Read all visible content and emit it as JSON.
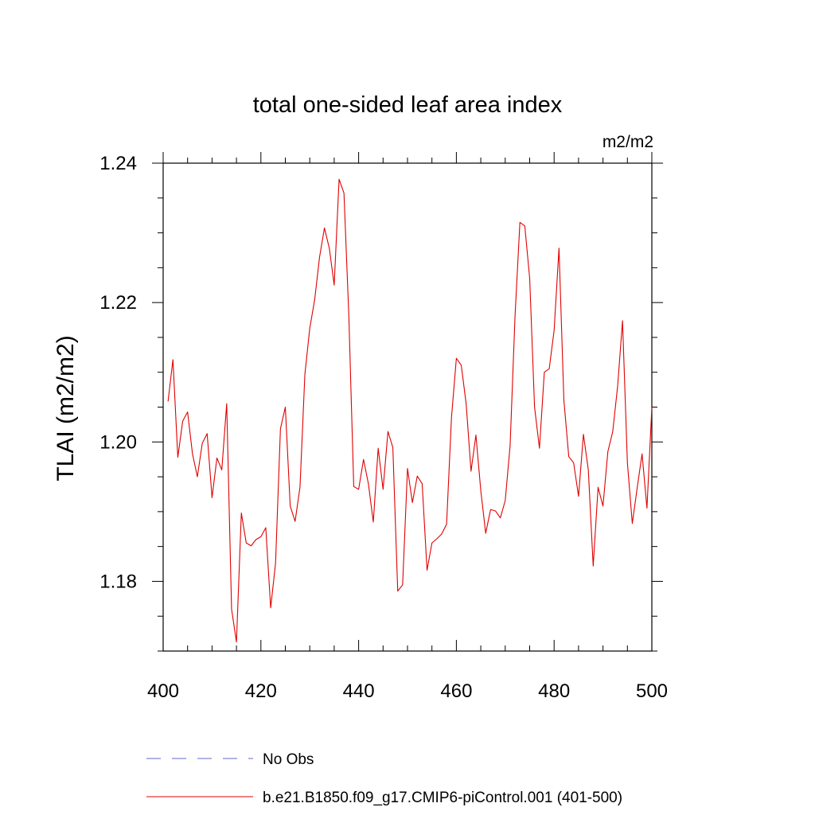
{
  "chart_data": {
    "type": "line",
    "title": "total one-sided leaf area index",
    "units_label": "m2/m2",
    "ylabel": "TLAI  (m2/m2)",
    "xlabel": "",
    "xlim": [
      400,
      500
    ],
    "ylim": [
      1.17,
      1.24
    ],
    "x_ticks": [
      400,
      420,
      440,
      460,
      480,
      500
    ],
    "x_tick_labels": [
      "400",
      "420",
      "440",
      "460",
      "480",
      "500"
    ],
    "y_ticks": [
      1.18,
      1.2,
      1.22,
      1.24
    ],
    "y_tick_labels": [
      "1.18",
      "1.20",
      "1.22",
      "1.24"
    ],
    "grid": false,
    "legend_position": "bottom",
    "legend": [
      {
        "label": "No Obs",
        "color": "#6666cc",
        "style": "dashed"
      },
      {
        "label": "b.e21.B1850.f09_g17.CMIP6-piControl.001 (401-500)",
        "color": "#e00000",
        "style": "solid"
      }
    ],
    "series": [
      {
        "name": "b.e21.B1850.f09_g17.CMIP6-piControl.001 (401-500)",
        "color": "#e00000",
        "x": [
          401,
          402,
          403,
          404,
          405,
          406,
          407,
          408,
          409,
          410,
          411,
          412,
          413,
          414,
          415,
          416,
          417,
          418,
          419,
          420,
          421,
          422,
          423,
          424,
          425,
          426,
          427,
          428,
          429,
          430,
          431,
          432,
          433,
          434,
          435,
          436,
          437,
          438,
          439,
          440,
          441,
          442,
          443,
          444,
          445,
          446,
          447,
          448,
          449,
          450,
          451,
          452,
          453,
          454,
          455,
          456,
          457,
          458,
          459,
          460,
          461,
          462,
          463,
          464,
          465,
          466,
          467,
          468,
          469,
          470,
          471,
          472,
          473,
          474,
          475,
          476,
          477,
          478,
          479,
          480,
          481,
          482,
          483,
          484,
          485,
          486,
          487,
          488,
          489,
          490,
          491,
          492,
          493,
          494,
          495,
          496,
          497,
          498,
          499,
          500
        ],
        "y": [
          1.2058,
          1.2118,
          1.1978,
          1.203,
          1.2043,
          1.1983,
          1.195,
          1.1998,
          1.2012,
          1.192,
          1.1977,
          1.196,
          1.2055,
          1.176,
          1.1713,
          1.1898,
          1.1855,
          1.1851,
          1.186,
          1.1864,
          1.1877,
          1.1762,
          1.1826,
          1.2019,
          1.205,
          1.1908,
          1.1886,
          1.1935,
          1.2097,
          1.2163,
          1.2204,
          1.2265,
          1.2307,
          1.2278,
          1.2225,
          1.2377,
          1.2357,
          1.218,
          1.1936,
          1.1932,
          1.1975,
          1.194,
          1.1885,
          1.1991,
          1.1932,
          1.2015,
          1.1992,
          1.1786,
          1.1795,
          1.1962,
          1.1913,
          1.1951,
          1.194,
          1.1816,
          1.1855,
          1.1861,
          1.1868,
          1.1882,
          1.2035,
          1.212,
          1.211,
          1.2055,
          1.1958,
          1.201,
          1.193,
          1.1869,
          1.1903,
          1.1901,
          1.1891,
          1.1916,
          1.1995,
          1.218,
          1.2315,
          1.231,
          1.2235,
          1.205,
          1.1991,
          1.21,
          1.2105,
          1.216,
          1.2278,
          1.206,
          1.1979,
          1.197,
          1.1922,
          1.2011,
          1.196,
          1.1822,
          1.1935,
          1.1908,
          1.1986,
          1.2015,
          1.208,
          1.2174,
          1.197,
          1.1883,
          1.1934,
          1.1983,
          1.1905,
          1.205
        ]
      }
    ]
  }
}
